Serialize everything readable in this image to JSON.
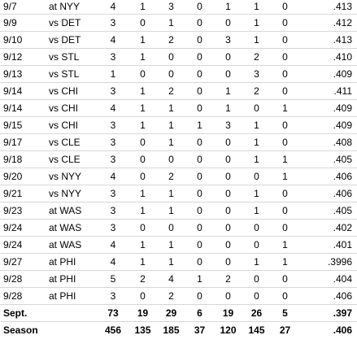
{
  "rows": [
    [
      "9/7",
      "at NYY",
      "4",
      "1",
      "3",
      "0",
      "1",
      "1",
      "0",
      ".413"
    ],
    [
      "9/9",
      "vs DET",
      "3",
      "0",
      "1",
      "0",
      "0",
      "1",
      "0",
      ".412"
    ],
    [
      "9/10",
      "vs DET",
      "4",
      "1",
      "2",
      "0",
      "3",
      "1",
      "0",
      ".413"
    ],
    [
      "9/12",
      "vs STL",
      "3",
      "1",
      "0",
      "0",
      "0",
      "2",
      "0",
      ".410"
    ],
    [
      "9/13",
      "vs STL",
      "1",
      "0",
      "0",
      "0",
      "0",
      "3",
      "0",
      ".409"
    ],
    [
      "9/14",
      "vs CHI",
      "3",
      "1",
      "2",
      "0",
      "1",
      "2",
      "0",
      ".411"
    ],
    [
      "9/14",
      "vs CHI",
      "4",
      "1",
      "1",
      "0",
      "1",
      "0",
      "1",
      ".409"
    ],
    [
      "9/15",
      "vs CHI",
      "3",
      "1",
      "1",
      "1",
      "3",
      "1",
      "0",
      ".409"
    ],
    [
      "9/17",
      "vs CLE",
      "3",
      "0",
      "1",
      "0",
      "0",
      "1",
      "0",
      ".408"
    ],
    [
      "9/18",
      "vs CLE",
      "3",
      "0",
      "0",
      "0",
      "0",
      "1",
      "1",
      ".405"
    ],
    [
      "9/20",
      "vs NYY",
      "4",
      "0",
      "2",
      "0",
      "0",
      "0",
      "1",
      ".406"
    ],
    [
      "9/21",
      "vs NYY",
      "3",
      "1",
      "1",
      "0",
      "0",
      "1",
      "0",
      ".406"
    ],
    [
      "9/23",
      "at WAS",
      "3",
      "1",
      "1",
      "0",
      "0",
      "1",
      "0",
      ".405"
    ],
    [
      "9/24",
      "at WAS",
      "3",
      "0",
      "0",
      "0",
      "0",
      "0",
      "0",
      ".402"
    ],
    [
      "9/24",
      "at WAS",
      "4",
      "1",
      "1",
      "0",
      "0",
      "0",
      "1",
      ".401"
    ],
    [
      "9/27",
      "at PHI",
      "4",
      "1",
      "1",
      "0",
      "0",
      "1",
      "1",
      ".3996"
    ],
    [
      "9/28",
      "at PHI",
      "5",
      "2",
      "4",
      "1",
      "2",
      "0",
      "0",
      ".404"
    ],
    [
      "9/28",
      "at PHI",
      "3",
      "0",
      "2",
      "0",
      "0",
      "0",
      "0",
      ".406"
    ]
  ],
  "summary": [
    [
      "Sept.",
      "",
      "73",
      "19",
      "29",
      "6",
      "19",
      "26",
      "5",
      ".397"
    ],
    [
      "Season",
      "",
      "456",
      "135",
      "185",
      "37",
      "120",
      "145",
      "27",
      ".406"
    ]
  ]
}
